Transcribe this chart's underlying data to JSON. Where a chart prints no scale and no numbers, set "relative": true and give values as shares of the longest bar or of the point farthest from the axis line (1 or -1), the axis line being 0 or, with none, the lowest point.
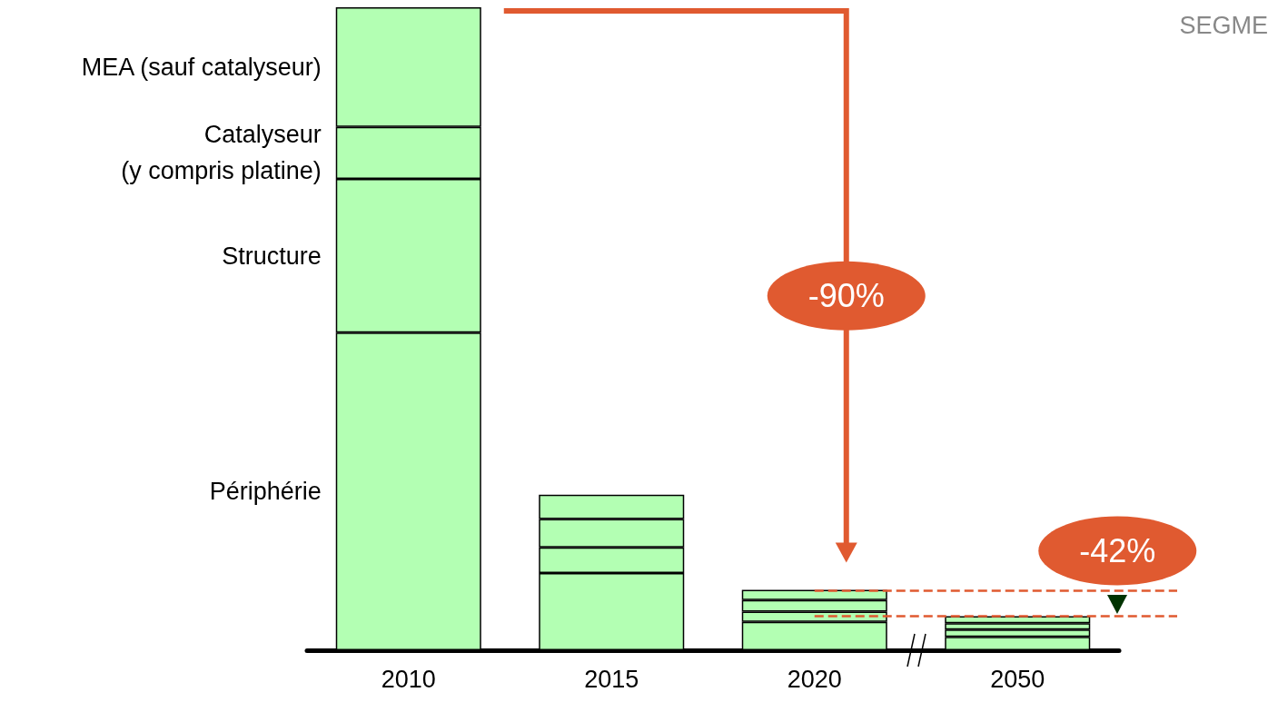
{
  "chart_data": {
    "type": "bar",
    "stacked": true,
    "relative": true,
    "categories": [
      "2010",
      "2015",
      "2020",
      "2050"
    ],
    "series": [
      {
        "name": "Périphérie",
        "color": "#b3ffb3",
        "values": [
          0.494,
          0.12,
          0.044,
          0.021
        ]
      },
      {
        "name": "Structure",
        "color": "#b3ffb3",
        "values": [
          0.239,
          0.04,
          0.016,
          0.011
        ]
      },
      {
        "name": "Catalyseur\n(y compris platine)",
        "color": "#b3ffb3",
        "values": [
          0.081,
          0.044,
          0.018,
          0.01
        ]
      },
      {
        "name": "MEA (sauf catalyseur)",
        "color": "#b3ffb3",
        "values": [
          0.186,
          0.038,
          0.016,
          0.011
        ]
      }
    ],
    "ref_lines": [
      {
        "axis": "y",
        "value": 0.093,
        "color": "#e05a30",
        "line_style": "dashed"
      },
      {
        "axis": "y",
        "value": 0.054,
        "color": "#e05a30",
        "line_style": "dashed"
      }
    ],
    "annotations": [
      "-90%",
      "-42%",
      "SEGME"
    ],
    "legend": false
  }
}
